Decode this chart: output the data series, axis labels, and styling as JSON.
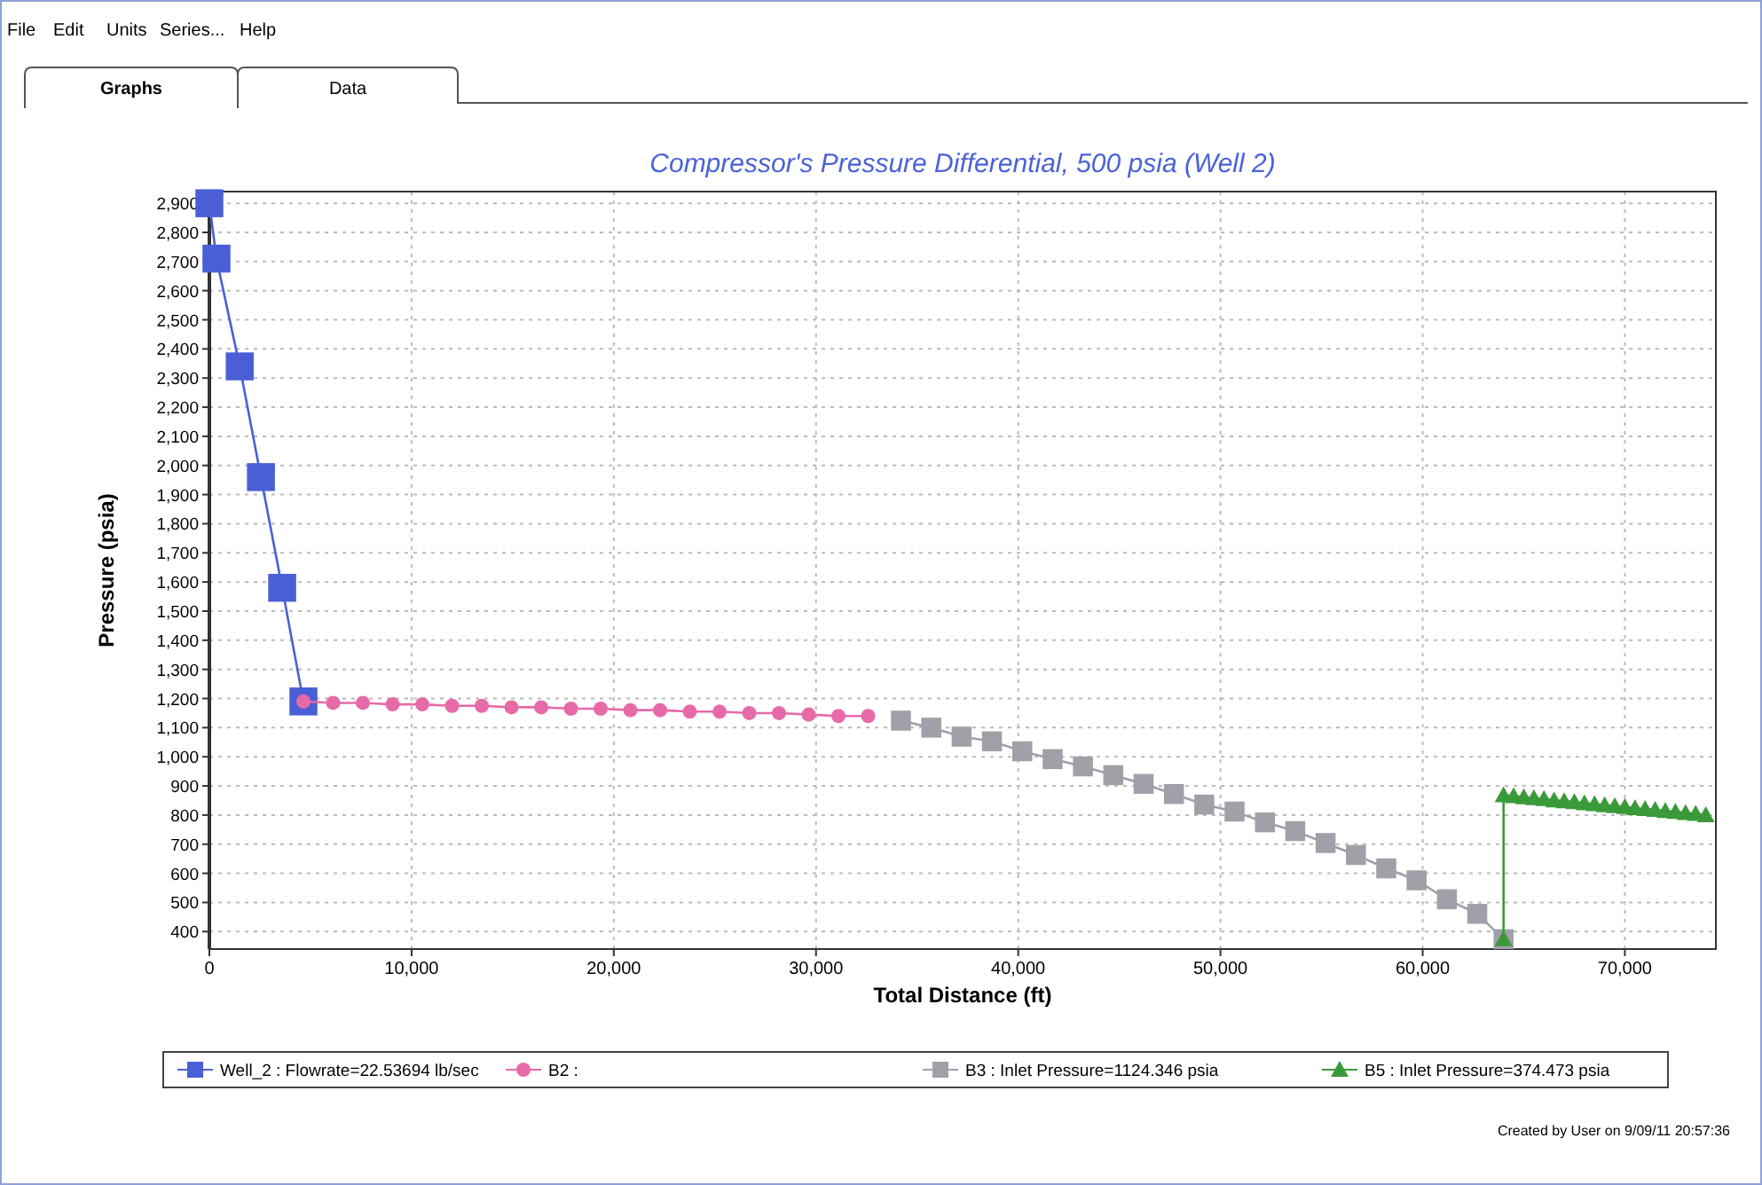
{
  "chart_data": {
    "type": "line",
    "title": "Compressor's Pressure Differential, 500 psia (Well 2)",
    "xlabel": "Total Distance (ft)",
    "ylabel": "Pressure (psia)",
    "annotations": [
      "File",
      "Edit",
      "Units",
      "Series...",
      "Help",
      "Graphs",
      "Data",
      "Created by User on 9/09/11 20:57:36"
    ],
    "xlim": [
      0,
      74500
    ],
    "ylim": [
      340,
      2940
    ],
    "xticks": [
      0,
      {
        "value": 10000,
        "label": "10,000"
      },
      {
        "value": 20000,
        "label": "20,000"
      },
      {
        "value": 30000,
        "label": "30,000"
      },
      {
        "value": 40000,
        "label": "40,000"
      },
      {
        "value": 50000,
        "label": "50,000"
      },
      {
        "value": 60000,
        "label": "60,000"
      },
      {
        "value": 70000,
        "label": "70,000"
      }
    ],
    "yticks": [
      400,
      500,
      600,
      700,
      800,
      900,
      {
        "value": 1000,
        "label": "1,000"
      },
      {
        "value": 1100,
        "label": "1,100"
      },
      {
        "value": 1200,
        "label": "1,200"
      },
      {
        "value": 1300,
        "label": "1,300"
      },
      {
        "value": 1400,
        "label": "1,400"
      },
      {
        "value": 1500,
        "label": "1,500"
      },
      {
        "value": 1600,
        "label": "1,600"
      },
      {
        "value": 1700,
        "label": "1,700"
      },
      {
        "value": 1800,
        "label": "1,800"
      },
      {
        "value": 1900,
        "label": "1,900"
      },
      {
        "value": 2000,
        "label": "2,000"
      },
      {
        "value": 2100,
        "label": "2,100"
      },
      {
        "value": 2200,
        "label": "2,200"
      },
      {
        "value": 2300,
        "label": "2,300"
      },
      {
        "value": 2400,
        "label": "2,400"
      },
      {
        "value": 2500,
        "label": "2,500"
      },
      {
        "value": 2600,
        "label": "2,600"
      },
      {
        "value": 2700,
        "label": "2,700"
      },
      {
        "value": 2800,
        "label": "2,800"
      },
      {
        "value": 2900,
        "label": "2,900"
      }
    ],
    "grid": true,
    "legend": "bottom",
    "line_style": "solid",
    "series": [
      {
        "name": "Well_2 : Flowrate=22.53694 lb/sec",
        "color": "#4a5fd6",
        "marker": "square",
        "x": [
          0,
          350,
          1500,
          2550,
          3600,
          4650
        ],
        "values": [
          2900,
          2710,
          2340,
          1960,
          1580,
          1190
        ]
      },
      {
        "name": "B2 :",
        "color": "#e66aa8",
        "marker": "circle",
        "x": [
          4650,
          6120,
          7590,
          9060,
          10530,
          12000,
          13470,
          14940,
          16410,
          17880,
          19350,
          20820,
          22290,
          23760,
          25230,
          26700,
          28170,
          29640,
          31110,
          32580
        ],
        "values": [
          1190,
          1185,
          1185,
          1180,
          1180,
          1175,
          1175,
          1170,
          1170,
          1165,
          1165,
          1160,
          1160,
          1155,
          1155,
          1150,
          1150,
          1145,
          1140,
          1140
        ]
      },
      {
        "name": "B3 : Inlet Pressure=1124.346 psia",
        "color": "#a0a0a8",
        "marker": "square",
        "x": [
          34200,
          35700,
          37200,
          38700,
          40200,
          41700,
          43200,
          44700,
          46200,
          47700,
          49200,
          50700,
          52200,
          53700,
          55200,
          56700,
          58200,
          59700,
          61200,
          62700,
          64000
        ],
        "values": [
          1124,
          1100,
          1069,
          1053,
          1019,
          992,
          967,
          937,
          907,
          872,
          836,
          812,
          775,
          745,
          704,
          663,
          617,
          576,
          511,
          461,
          374
        ]
      },
      {
        "name": "B5 : Inlet Pressure=374.473 psia",
        "color": "#3a9a3a",
        "marker": "triangle",
        "x": [
          64000,
          64000,
          64500,
          65000,
          65500,
          66000,
          66500,
          67000,
          67500,
          68000,
          68500,
          69000,
          69500,
          70000,
          70500,
          71000,
          71500,
          72000,
          72500,
          73000,
          73500,
          74000
        ],
        "values": [
          374,
          868,
          865,
          861,
          858,
          855,
          851,
          848,
          845,
          841,
          838,
          834,
          831,
          828,
          824,
          821,
          818,
          814,
          811,
          807,
          804,
          800
        ]
      }
    ]
  }
}
